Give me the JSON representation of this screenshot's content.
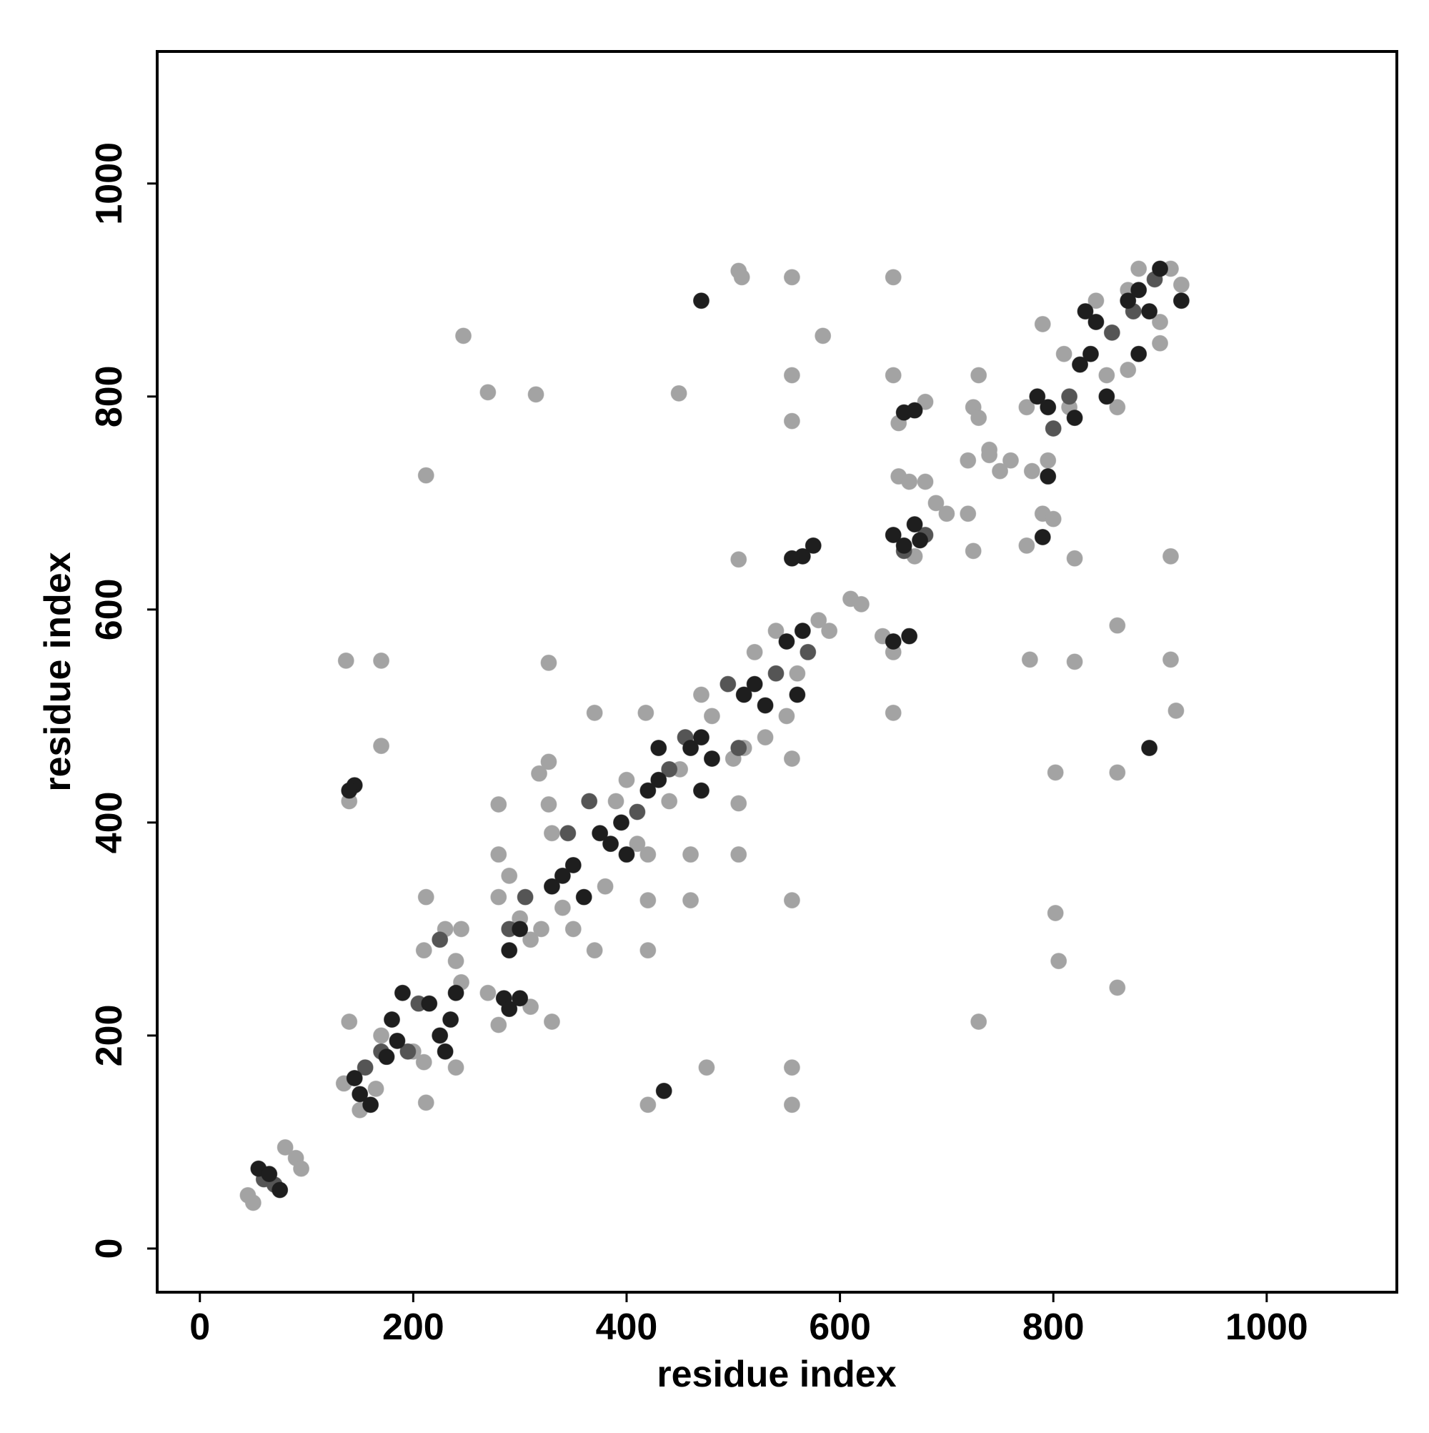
{
  "chart_data": {
    "type": "scatter",
    "xlabel": "residue index",
    "ylabel": "residue index",
    "xlim": [
      -40,
      1122
    ],
    "ylim": [
      -41,
      1124
    ],
    "xticks": [
      0,
      200,
      400,
      600,
      800,
      1000
    ],
    "yticks": [
      0,
      200,
      400,
      600,
      800,
      1000
    ],
    "series": [
      {
        "color": "#a3a3a3",
        "x": [
          247,
          270,
          315,
          212,
          449,
          555,
          555,
          555,
          584,
          650,
          650,
          505,
          508,
          137,
          170,
          170,
          327,
          370,
          418,
          327,
          318,
          280,
          327,
          280,
          505,
          505,
          555,
          460,
          460,
          420,
          420,
          370,
          330,
          310,
          555,
          555,
          475,
          555,
          420,
          650,
          730,
          802,
          805,
          860,
          802,
          860,
          860,
          910,
          910,
          915,
          820,
          820,
          778,
          505,
          245,
          212,
          212,
          140,
          730,
          790,
          860,
          45,
          50,
          80,
          90,
          95,
          135,
          150,
          165,
          170,
          200,
          210,
          240,
          210,
          230,
          240,
          245,
          270,
          280,
          280,
          290,
          300,
          310,
          320,
          330,
          340,
          350,
          380,
          390,
          400,
          410,
          420,
          440,
          450,
          455,
          470,
          480,
          500,
          510,
          530,
          540,
          550,
          560,
          580,
          590,
          610,
          620,
          640,
          650,
          655,
          665,
          670,
          680,
          690,
          700,
          720,
          725,
          730,
          740,
          750,
          760,
          775,
          780,
          790,
          800,
          810,
          815,
          840,
          850,
          870,
          880,
          900,
          910,
          920,
          900,
          870,
          725,
          740,
          655,
          680,
          775,
          795,
          140,
          720,
          520
        ],
        "y": [
          857,
          804,
          802,
          726,
          803,
          820,
          777,
          912,
          857,
          912,
          820,
          918,
          912,
          552,
          552,
          472,
          550,
          503,
          503,
          457,
          446,
          417,
          417,
          370,
          418,
          370,
          460,
          370,
          327,
          327,
          280,
          280,
          213,
          227,
          327,
          170,
          170,
          135,
          135,
          503,
          213,
          315,
          270,
          245,
          447,
          447,
          585,
          650,
          553,
          505,
          648,
          551,
          553,
          647,
          300,
          330,
          137,
          213,
          820,
          868,
          790,
          50,
          43,
          95,
          85,
          75,
          155,
          130,
          150,
          200,
          185,
          175,
          170,
          280,
          300,
          270,
          250,
          240,
          210,
          330,
          350,
          310,
          290,
          300,
          390,
          320,
          300,
          340,
          420,
          440,
          380,
          370,
          420,
          450,
          480,
          520,
          500,
          460,
          470,
          480,
          580,
          500,
          540,
          590,
          580,
          610,
          605,
          575,
          560,
          725,
          720,
          650,
          720,
          700,
          690,
          740,
          790,
          780,
          750,
          730,
          740,
          790,
          730,
          690,
          685,
          840,
          790,
          890,
          820,
          900,
          920,
          870,
          920,
          905,
          850,
          825,
          655,
          745,
          775,
          795,
          660,
          740,
          420,
          690,
          560
        ]
      },
      {
        "color": "#555555",
        "x": [
          60,
          70,
          155,
          170,
          195,
          205,
          225,
          290,
          305,
          345,
          365,
          410,
          440,
          455,
          495,
          505,
          540,
          570,
          660,
          680,
          800,
          815,
          855,
          875,
          895
        ],
        "y": [
          65,
          60,
          170,
          185,
          185,
          230,
          290,
          300,
          330,
          390,
          420,
          410,
          450,
          480,
          530,
          470,
          540,
          560,
          655,
          670,
          770,
          800,
          860,
          880,
          910
        ]
      },
      {
        "color": "#1e1e1e",
        "x": [
          55,
          65,
          75,
          150,
          160,
          145,
          175,
          185,
          180,
          190,
          215,
          225,
          230,
          235,
          240,
          285,
          290,
          300,
          300,
          290,
          330,
          340,
          350,
          360,
          375,
          385,
          395,
          400,
          420,
          430,
          430,
          470,
          460,
          470,
          480,
          510,
          520,
          530,
          550,
          560,
          565,
          575,
          565,
          555,
          650,
          660,
          670,
          675,
          650,
          665,
          660,
          670,
          795,
          785,
          795,
          790,
          820,
          825,
          835,
          840,
          830,
          850,
          870,
          880,
          890,
          900,
          920,
          880,
          890,
          470,
          145,
          140,
          435
        ],
        "y": [
          75,
          70,
          55,
          145,
          135,
          160,
          180,
          195,
          215,
          240,
          230,
          200,
          185,
          215,
          240,
          235,
          225,
          235,
          300,
          280,
          340,
          350,
          360,
          330,
          390,
          380,
          400,
          370,
          430,
          440,
          470,
          430,
          470,
          480,
          460,
          520,
          530,
          510,
          570,
          520,
          580,
          660,
          650,
          648,
          670,
          660,
          680,
          665,
          570,
          575,
          785,
          787,
          725,
          800,
          790,
          668,
          780,
          830,
          840,
          870,
          880,
          800,
          890,
          900,
          880,
          920,
          890,
          840,
          470,
          890,
          435,
          430,
          148
        ]
      }
    ]
  }
}
